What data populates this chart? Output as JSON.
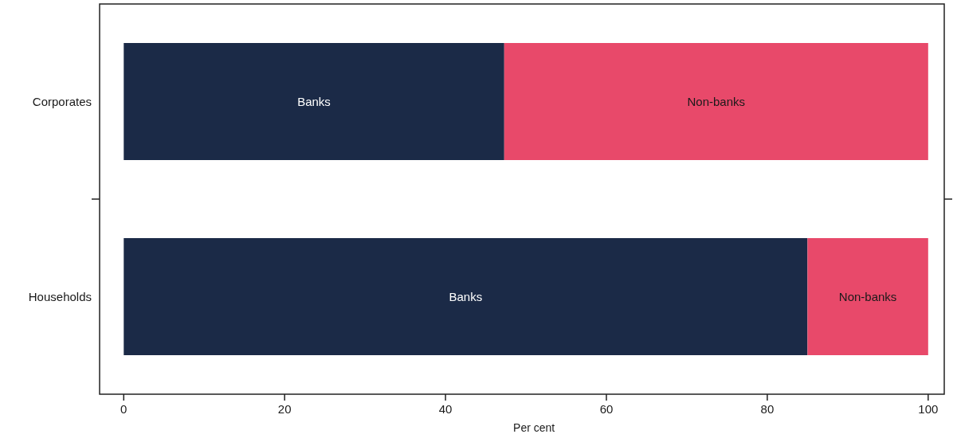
{
  "chart_data": {
    "type": "bar",
    "orientation": "horizontal",
    "stacked": true,
    "categories": [
      "Corporates",
      "Households"
    ],
    "series": [
      {
        "name": "Banks",
        "color": "#1b2a47",
        "values": [
          47.3,
          85
        ]
      },
      {
        "name": "Non-banks",
        "color": "#e8496a",
        "values": [
          52.7,
          15
        ]
      }
    ],
    "xlabel": "Per cent",
    "xlim": [
      -3,
      102
    ],
    "xticks": [
      0,
      20,
      40,
      60,
      80,
      100
    ],
    "grid": false
  }
}
